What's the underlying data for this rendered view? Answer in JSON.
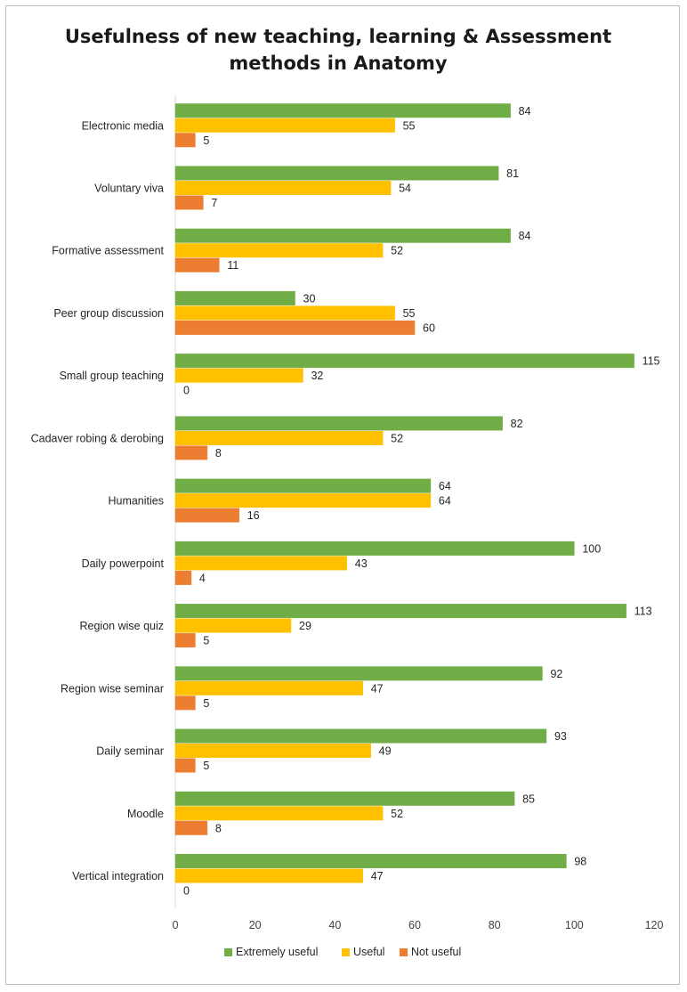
{
  "chart_data": {
    "type": "bar",
    "orientation": "horizontal",
    "title": "Usefulness of new teaching, learning & Assessment methods in Anatomy",
    "title_lines": [
      "Usefulness of new teaching, learning & Assessment",
      "methods in Anatomy"
    ],
    "categories": [
      "Electronic media",
      "Voluntary viva",
      "Formative assessment",
      "Peer group discussion",
      "Small group teaching",
      "Cadaver robing & derobing",
      "Humanities",
      "Daily powerpoint",
      "Region wise quiz",
      "Region wise seminar",
      "Daily seminar",
      "Moodle",
      "Vertical integration"
    ],
    "series": [
      {
        "name": "Extremely useful",
        "color": "#70ad47",
        "values": [
          84,
          81,
          84,
          30,
          115,
          82,
          64,
          100,
          113,
          92,
          93,
          85,
          98
        ]
      },
      {
        "name": "Useful",
        "color": "#ffc000",
        "values": [
          55,
          54,
          52,
          55,
          32,
          52,
          64,
          43,
          29,
          47,
          49,
          52,
          47
        ]
      },
      {
        "name": "Not useful",
        "color": "#ed7d31",
        "values": [
          5,
          7,
          11,
          60,
          0,
          8,
          16,
          4,
          5,
          5,
          5,
          8,
          0
        ]
      }
    ],
    "xlim": [
      0,
      120
    ],
    "xticks": [
      0,
      20,
      40,
      60,
      80,
      100,
      120
    ],
    "xlabel": "",
    "ylabel": "",
    "grid": false,
    "legend_position": "bottom"
  }
}
